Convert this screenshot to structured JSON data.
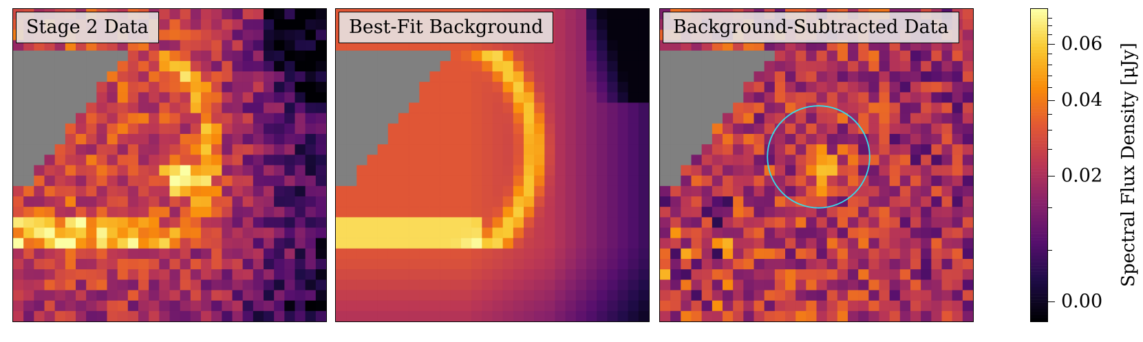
{
  "panels": [
    {
      "label": "Stage 2 Data",
      "kind": "data"
    },
    {
      "label": "Best-Fit Background",
      "kind": "background"
    },
    {
      "label": "Background-Subtracted Data",
      "kind": "subtracted"
    }
  ],
  "colorbar": {
    "label": "Spectral Flux Density [μJy]",
    "colormap": "inferno",
    "scale": "asinh",
    "range": [
      0.0,
      0.07
    ],
    "major_ticks": [
      {
        "value": 0.0,
        "label": "0.00"
      },
      {
        "value": 0.02,
        "label": "0.02"
      },
      {
        "value": 0.04,
        "label": "0.04"
      },
      {
        "value": 0.06,
        "label": "0.06"
      }
    ]
  },
  "chart_data": {
    "type": "heatmap",
    "title": "",
    "grid_size": [
      30,
      30
    ],
    "panels": [
      "Stage 2 Data",
      "Best-Fit Background",
      "Background-Subtracted Data"
    ],
    "colorbar_label": "Spectral Flux Density [μJy]",
    "value_range": [
      0.0,
      0.07
    ],
    "masked_color": "#808080",
    "aperture": {
      "panel": "Background-Subtracted Data",
      "color": "#33e0ee",
      "shape": "circle"
    },
    "grid": false
  }
}
